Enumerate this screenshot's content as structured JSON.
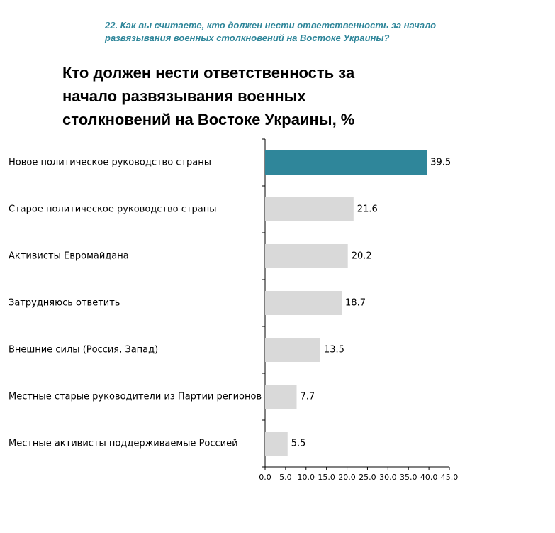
{
  "chart_data": {
    "type": "barh",
    "question": "22. Как вы считаете, кто должен нести ответственность за начало развязывания военных столкновений на Востоке Украины?",
    "title": "Кто должен нести ответственность за начало развязывания военных столкновений на Востоке Украины, %",
    "categories": [
      "Новое политическое руководство страны",
      "Старое политическое руководство страны",
      "Активисты Евромайдана",
      "Затрудняюсь ответить",
      "Внешние силы (Россия, Запад)",
      "Местные старые руководители из Партии регионов",
      "Местные активисты поддерживаемые Россией"
    ],
    "values": [
      39.5,
      21.6,
      20.2,
      18.7,
      13.5,
      7.7,
      5.5
    ],
    "colors": [
      "#2f869a",
      "#d9d9d9",
      "#d9d9d9",
      "#d9d9d9",
      "#d9d9d9",
      "#d9d9d9",
      "#d9d9d9"
    ],
    "xlim": [
      0,
      45
    ],
    "xticks": [
      {
        "value": 0,
        "label": "0.0"
      },
      {
        "value": 5,
        "label": "5.0"
      },
      {
        "value": 10,
        "label": "10.0"
      },
      {
        "value": 15,
        "label": "15.0"
      },
      {
        "value": 20,
        "label": "20.0"
      },
      {
        "value": 25,
        "label": "25.0"
      },
      {
        "value": 30,
        "label": "30.0"
      },
      {
        "value": 35,
        "label": "35.0"
      },
      {
        "value": 40,
        "label": "40.0"
      },
      {
        "value": 45,
        "label": "45.0"
      }
    ]
  }
}
